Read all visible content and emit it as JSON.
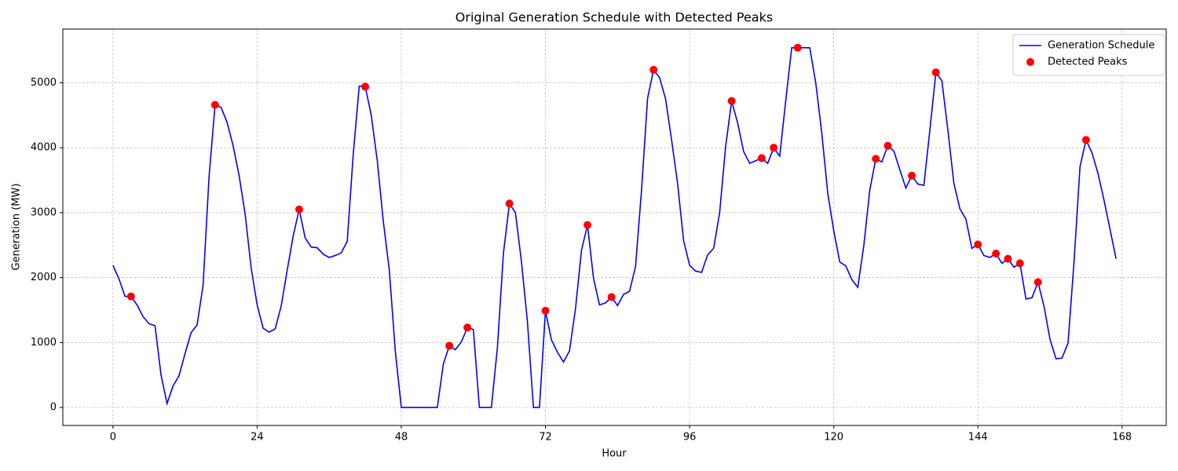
{
  "chart_data": {
    "type": "line",
    "title": "Original Generation Schedule with Detected Peaks",
    "x_label": "Hour",
    "y_label": "Generation (MW)",
    "xlim": [
      -8.35,
      175.35
    ],
    "ylim": [
      -277.5,
      5827.5
    ],
    "xticks": [
      0,
      24,
      48,
      72,
      96,
      120,
      144,
      168
    ],
    "yticks": [
      0,
      1000,
      2000,
      3000,
      4000,
      5000
    ],
    "grid": true,
    "legend": "upper right",
    "series": [
      {
        "name": "Generation Schedule",
        "type": "line",
        "color": "#0000ff",
        "x": [
          0,
          1,
          2,
          3,
          4,
          5,
          6,
          7,
          8,
          9,
          10,
          11,
          12,
          13,
          14,
          15,
          16,
          17,
          18,
          19,
          20,
          21,
          22,
          23,
          24,
          25,
          26,
          27,
          28,
          29,
          30,
          31,
          32,
          33,
          34,
          35,
          36,
          37,
          38,
          39,
          40,
          41,
          42,
          43,
          44,
          45,
          46,
          47,
          48,
          49,
          50,
          51,
          52,
          53,
          54,
          55,
          56,
          57,
          58,
          59,
          60,
          61,
          62,
          63,
          64,
          65,
          66,
          67,
          68,
          69,
          70,
          71,
          72,
          73,
          74,
          75,
          76,
          77,
          78,
          79,
          80,
          81,
          82,
          83,
          84,
          85,
          86,
          87,
          88,
          89,
          90,
          91,
          92,
          93,
          94,
          95,
          96,
          97,
          98,
          99,
          100,
          101,
          102,
          103,
          104,
          105,
          106,
          107,
          108,
          109,
          110,
          111,
          112,
          113,
          114,
          115,
          116,
          117,
          118,
          119,
          120,
          121,
          122,
          123,
          124,
          125,
          126,
          127,
          128,
          129,
          130,
          131,
          132,
          133,
          134,
          135,
          136,
          137,
          138,
          139,
          140,
          141,
          142,
          143,
          144,
          145,
          146,
          147,
          148,
          149,
          150,
          151,
          152,
          153,
          154,
          155,
          156,
          157,
          158,
          159,
          160,
          161,
          162,
          163,
          164,
          165,
          166,
          167
        ],
        "values": [
          2190,
          1980,
          1710,
          1710,
          1580,
          1400,
          1290,
          1260,
          500,
          60,
          330,
          490,
          830,
          1150,
          1270,
          1880,
          3560,
          4660,
          4620,
          4390,
          4030,
          3570,
          2980,
          2150,
          1580,
          1220,
          1160,
          1210,
          1560,
          2110,
          2640,
          3050,
          2610,
          2470,
          2460,
          2360,
          2310,
          2340,
          2380,
          2560,
          3900,
          4950,
          4940,
          4500,
          3800,
          2870,
          2120,
          870,
          0,
          0,
          0,
          0,
          0,
          0,
          0,
          670,
          950,
          890,
          1010,
          1230,
          1200,
          0,
          0,
          0,
          920,
          2370,
          3140,
          3000,
          2250,
          1320,
          0,
          0,
          1490,
          1040,
          850,
          700,
          870,
          1520,
          2420,
          2810,
          1990,
          1580,
          1610,
          1700,
          1570,
          1740,
          1790,
          2170,
          3350,
          4760,
          5200,
          5080,
          4750,
          4120,
          3450,
          2570,
          2190,
          2100,
          2080,
          2350,
          2450,
          3000,
          4020,
          4720,
          4380,
          3940,
          3760,
          3800,
          3840,
          3760,
          4000,
          3870,
          4720,
          5540,
          5540,
          5540,
          5540,
          5000,
          4230,
          3300,
          2720,
          2240,
          2180,
          1970,
          1850,
          2490,
          3350,
          3830,
          3780,
          4030,
          3950,
          3660,
          3380,
          3570,
          3440,
          3420,
          4270,
          5160,
          5030,
          4270,
          3450,
          3060,
          2900,
          2450,
          2510,
          2340,
          2310,
          2370,
          2220,
          2290,
          2160,
          2220,
          1670,
          1690,
          1930,
          1560,
          1050,
          750,
          760,
          990,
          2240,
          3710,
          4120,
          3920,
          3600,
          3190,
          2740,
          2290
        ]
      },
      {
        "name": "Detected Peaks",
        "type": "scatter",
        "color": "#ff0000",
        "x": [
          3,
          17,
          31,
          42,
          56,
          59,
          66,
          72,
          79,
          83,
          90,
          103,
          108,
          110,
          114,
          127,
          129,
          133,
          137,
          144,
          147,
          149,
          151,
          154,
          162
        ],
        "values": [
          1710,
          4660,
          3050,
          4940,
          950,
          1230,
          3140,
          1490,
          2810,
          1700,
          5200,
          4720,
          3840,
          4000,
          5540,
          3830,
          4030,
          3570,
          5160,
          2510,
          2370,
          2290,
          2220,
          1930,
          4120
        ]
      }
    ]
  }
}
